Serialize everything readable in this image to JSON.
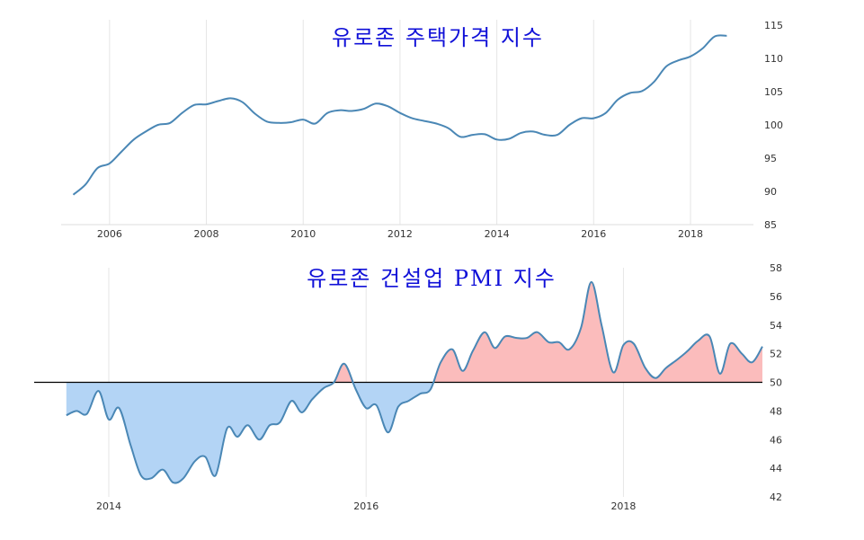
{
  "chart_data": [
    {
      "type": "line",
      "title": "유로존 주택가격 지수",
      "x_ticks": [
        "2006",
        "2008",
        "2010",
        "2012",
        "2014",
        "2016",
        "2018"
      ],
      "y_ticks": [
        "85",
        "90",
        "95",
        "100",
        "105",
        "110",
        "115"
      ],
      "ylim": [
        85,
        115
      ],
      "xlim": [
        2005.0,
        2019.3
      ],
      "grid": "vertical",
      "y_axis": "right",
      "colors": {
        "line": "#4a87b5"
      },
      "series": [
        {
          "x": [
            2005.25,
            2005.5,
            2005.75,
            2006.0,
            2006.25,
            2006.5,
            2006.75,
            2007.0,
            2007.25,
            2007.5,
            2007.75,
            2008.0,
            2008.25,
            2008.5,
            2008.75,
            2009.0,
            2009.25,
            2009.5,
            2009.75,
            2010.0,
            2010.25,
            2010.5,
            2010.75,
            2011.0,
            2011.25,
            2011.5,
            2011.75,
            2012.0,
            2012.25,
            2012.5,
            2012.75,
            2013.0,
            2013.25,
            2013.5,
            2013.75,
            2014.0,
            2014.25,
            2014.5,
            2014.75,
            2015.0,
            2015.25,
            2015.5,
            2015.75,
            2016.0,
            2016.25,
            2016.5,
            2016.75,
            2017.0,
            2017.25,
            2017.5,
            2017.75,
            2018.0,
            2018.25,
            2018.5,
            2018.75
          ],
          "values": [
            89.5,
            91.0,
            93.5,
            94.2,
            96.0,
            97.8,
            99.0,
            100.0,
            100.3,
            101.8,
            103.0,
            103.1,
            103.6,
            104.0,
            103.4,
            101.7,
            100.5,
            100.3,
            100.4,
            100.8,
            100.2,
            101.8,
            102.2,
            102.1,
            102.4,
            103.2,
            102.8,
            101.8,
            101.0,
            100.6,
            100.2,
            99.5,
            98.2,
            98.5,
            98.6,
            97.8,
            97.9,
            98.8,
            99.0,
            98.5,
            98.5,
            100.0,
            101.0,
            101.0,
            101.8,
            103.8,
            104.8,
            105.1,
            106.5,
            108.8,
            109.7,
            110.3,
            111.5,
            113.3,
            113.4
          ]
        }
      ]
    },
    {
      "type": "area",
      "title": "유로존 건설업 PMI 지수",
      "x_ticks": [
        "2014",
        "2016",
        "2018"
      ],
      "y_ticks": [
        "42",
        "44",
        "46",
        "48",
        "50",
        "52",
        "54",
        "56",
        "58"
      ],
      "ylim": [
        42,
        58
      ],
      "xlim": [
        2013.42,
        2019.08
      ],
      "baseline": 50,
      "grid": "vertical",
      "y_axis": "right",
      "colors": {
        "line": "#4a87b5",
        "below": "#b3d4f5",
        "above": "#fbbcbc",
        "baseline": "#000000"
      },
      "series": [
        {
          "x": [
            2013.67,
            2013.75,
            2013.83,
            2013.92,
            2014.0,
            2014.08,
            2014.17,
            2014.25,
            2014.33,
            2014.42,
            2014.5,
            2014.58,
            2014.67,
            2014.75,
            2014.83,
            2014.92,
            2015.0,
            2015.08,
            2015.17,
            2015.25,
            2015.33,
            2015.42,
            2015.5,
            2015.58,
            2015.67,
            2015.75,
            2015.83,
            2015.92,
            2016.0,
            2016.08,
            2016.17,
            2016.25,
            2016.33,
            2016.42,
            2016.5,
            2016.58,
            2016.67,
            2016.75,
            2016.83,
            2016.92,
            2017.0,
            2017.08,
            2017.17,
            2017.25,
            2017.33,
            2017.42,
            2017.5,
            2017.58,
            2017.67,
            2017.75,
            2017.83,
            2017.92,
            2018.0,
            2018.08,
            2018.17,
            2018.25,
            2018.33,
            2018.42,
            2018.5,
            2018.58,
            2018.67,
            2018.75,
            2018.83,
            2018.92,
            2019.0,
            2019.08
          ],
          "values": [
            47.7,
            48.0,
            47.8,
            49.4,
            47.4,
            48.2,
            45.6,
            43.5,
            43.3,
            43.9,
            43.0,
            43.3,
            44.5,
            44.8,
            43.5,
            46.8,
            46.2,
            47.0,
            46.0,
            47.0,
            47.2,
            48.7,
            47.9,
            48.8,
            49.6,
            50.0,
            51.3,
            49.5,
            48.2,
            48.4,
            46.5,
            48.3,
            48.7,
            49.2,
            49.5,
            51.4,
            52.3,
            50.8,
            52.2,
            53.5,
            52.4,
            53.2,
            53.1,
            53.1,
            53.5,
            52.8,
            52.8,
            52.3,
            53.8,
            57.0,
            54.0,
            50.7,
            52.6,
            52.7,
            51.0,
            50.3,
            51.0,
            51.6,
            52.2,
            52.9,
            53.2,
            50.6,
            52.7,
            52.0,
            51.4,
            52.5
          ]
        }
      ]
    }
  ]
}
